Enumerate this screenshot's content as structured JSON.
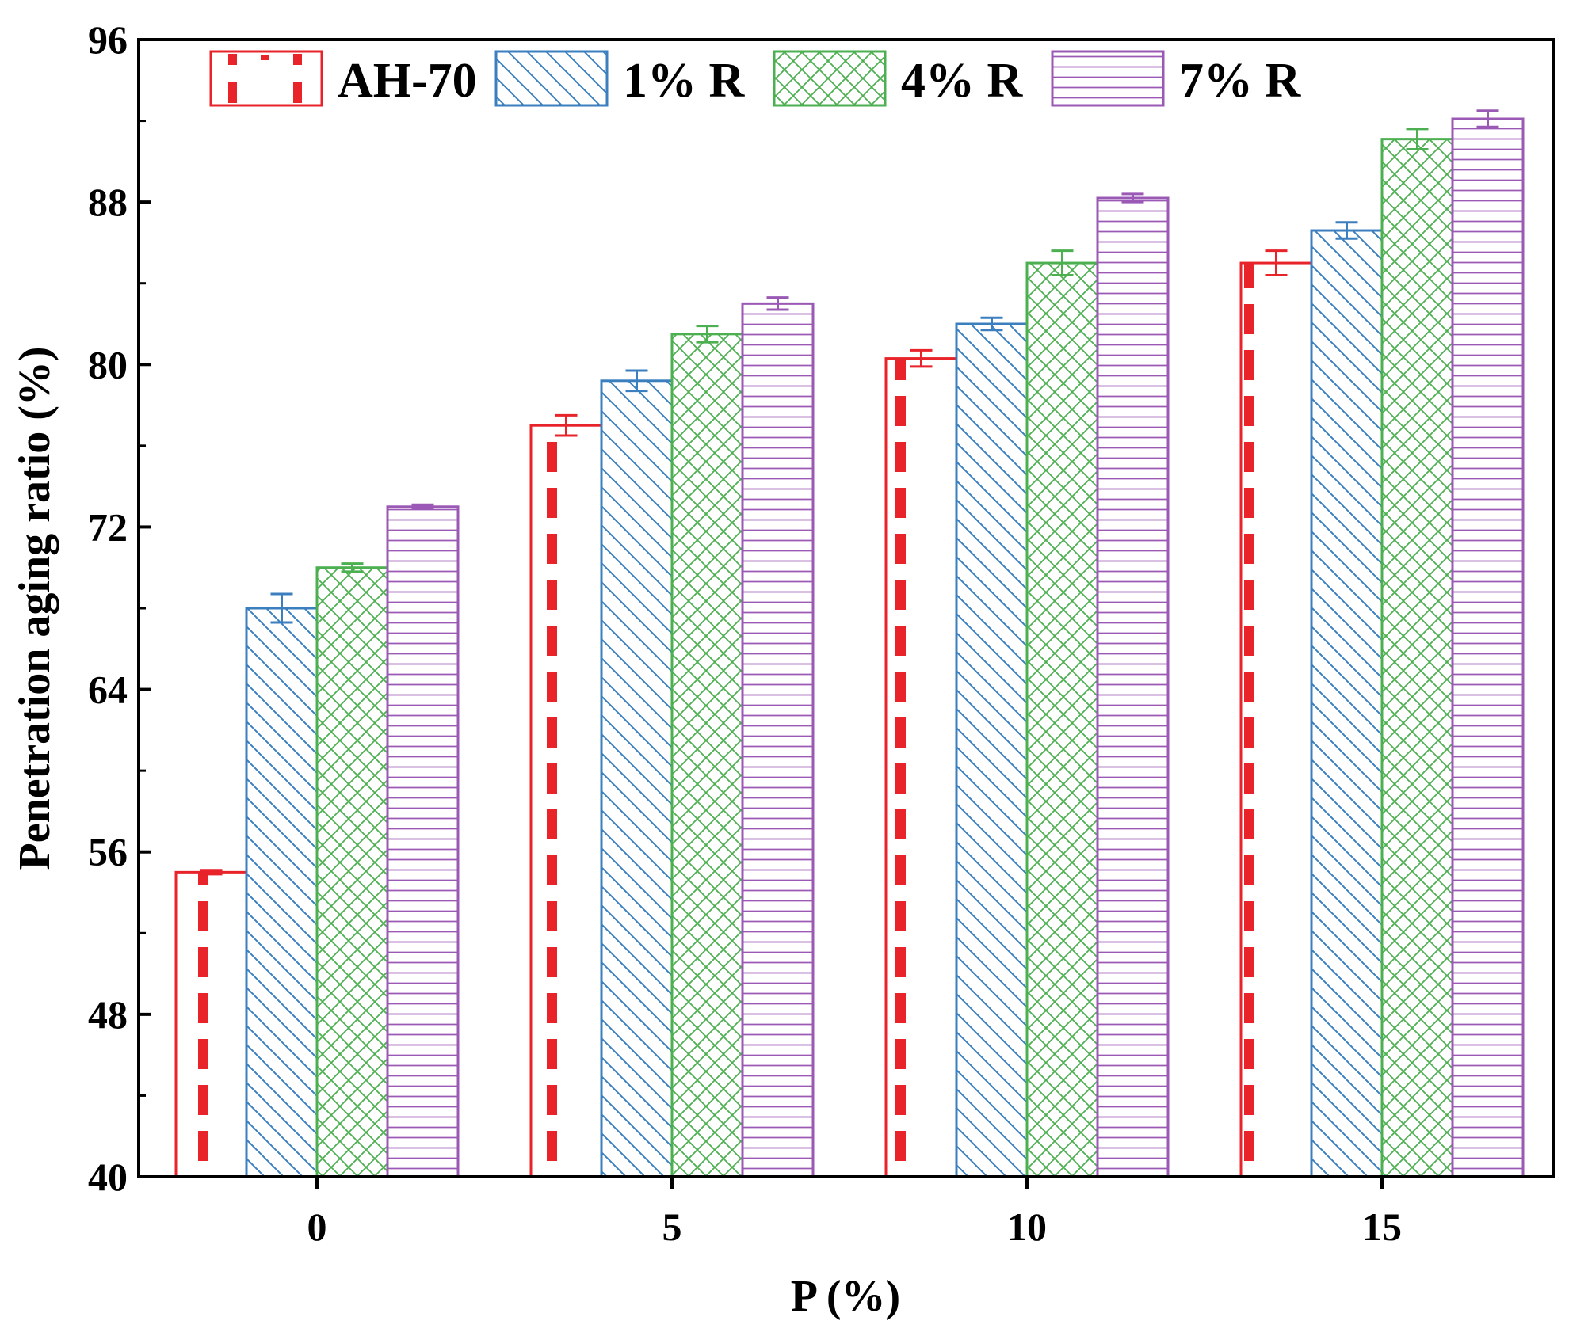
{
  "chart_data": {
    "type": "bar",
    "title": "",
    "xlabel": "P (%)",
    "ylabel": "Penetration aging ratio (%)",
    "categories": [
      "0",
      "5",
      "10",
      "15"
    ],
    "ylim": [
      40,
      96
    ],
    "yticks": [
      40,
      48,
      56,
      64,
      72,
      80,
      88,
      96
    ],
    "grid": false,
    "legend_position": "top",
    "series": [
      {
        "name": "AH-70",
        "color": "#e8232a",
        "pattern": "dashed-vertical",
        "values": [
          55.0,
          77.0,
          80.3,
          85.0
        ],
        "errors": [
          0.1,
          0.5,
          0.4,
          0.6
        ]
      },
      {
        "name": "1% R",
        "color": "#3b7fbf",
        "pattern": "diagonal",
        "values": [
          68.0,
          79.2,
          82.0,
          86.6
        ],
        "errors": [
          0.7,
          0.5,
          0.3,
          0.4
        ]
      },
      {
        "name": "4% R",
        "color": "#4caf50",
        "pattern": "crosshatch",
        "values": [
          70.0,
          81.5,
          85.0,
          91.1
        ],
        "errors": [
          0.2,
          0.4,
          0.6,
          0.5
        ]
      },
      {
        "name": "7% R",
        "color": "#9b59b6",
        "pattern": "horizontal",
        "values": [
          73.0,
          83.0,
          88.2,
          92.1
        ],
        "errors": [
          0.1,
          0.3,
          0.2,
          0.4
        ]
      }
    ]
  }
}
